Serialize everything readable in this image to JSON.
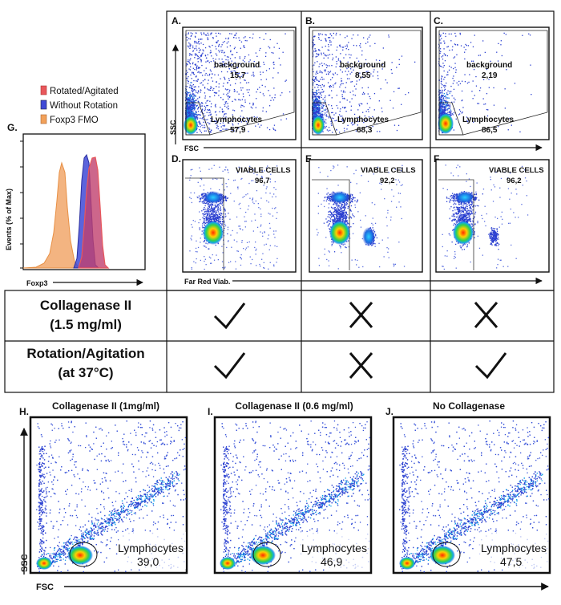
{
  "top_panels": [
    {
      "letter": "A.",
      "gate_top_label": "background",
      "gate_top_value": "15,7",
      "gate_bottom_label": "Lymphocytes",
      "gate_bottom_value": "57,9"
    },
    {
      "letter": "B.",
      "gate_top_label": "background",
      "gate_top_value": "8,55",
      "gate_bottom_label": "Lymphocytes",
      "gate_bottom_value": "68,3"
    },
    {
      "letter": "C.",
      "gate_top_label": "background",
      "gate_top_value": "2,19",
      "gate_bottom_label": "Lymphocytes",
      "gate_bottom_value": "86,5"
    }
  ],
  "viability_panels": [
    {
      "letter": "D.",
      "gate_label": "VIABLE CELLS",
      "gate_value": "96,7"
    },
    {
      "letter": "E.",
      "gate_label": "VIABLE CELLS",
      "gate_value": "92,2"
    },
    {
      "letter": "F.",
      "gate_label": "VIABLE CELLS",
      "gate_value": "96,2"
    }
  ],
  "axis_labels": {
    "ssc": "SSC",
    "fsc": "FSC",
    "far_red": "Far Red Viab.",
    "foxp3": "Foxp3",
    "events": "Events (% of Max)"
  },
  "histogram": {
    "letter": "G.",
    "legend": [
      {
        "label": "Rotated/Agitated",
        "color": "#e8575b"
      },
      {
        "label": "Without Rotation",
        "color": "#3f49d6"
      },
      {
        "label": "Foxp3 FMO",
        "color": "#f2a15a"
      }
    ]
  },
  "condition_table": {
    "rows": [
      {
        "line1": "Collagenase II",
        "line2": "(1.5 mg/ml)",
        "marks": [
          "check",
          "cross",
          "cross"
        ]
      },
      {
        "line1": "Rotation/Agitation",
        "line2": "(at 37°C)",
        "marks": [
          "check",
          "cross",
          "check"
        ]
      }
    ]
  },
  "bottom_panels": [
    {
      "letter": "H.",
      "title": "Collagenase II (1mg/ml)",
      "gate_label": "Lymphocytes",
      "gate_value": "39,0"
    },
    {
      "letter": "I.",
      "title": "Collagenase II (0.6 mg/ml)",
      "gate_label": "Lymphocytes",
      "gate_value": "46,9"
    },
    {
      "letter": "J.",
      "title": "No Collagenase",
      "gate_label": "Lymphocytes",
      "gate_value": "47,5"
    }
  ],
  "chart_data": [
    {
      "type": "scatter",
      "title": "",
      "xlabel": "FSC",
      "ylabel": "SSC",
      "gates": [
        {
          "name": "background",
          "percent": 15.7
        },
        {
          "name": "Lymphocytes",
          "percent": 57.9
        }
      ]
    },
    {
      "type": "scatter",
      "title": "",
      "xlabel": "FSC",
      "ylabel": "SSC",
      "gates": [
        {
          "name": "background",
          "percent": 8.55
        },
        {
          "name": "Lymphocytes",
          "percent": 68.3
        }
      ]
    },
    {
      "type": "scatter",
      "title": "",
      "xlabel": "FSC",
      "ylabel": "SSC",
      "gates": [
        {
          "name": "background",
          "percent": 2.19
        },
        {
          "name": "Lymphocytes",
          "percent": 86.5
        }
      ]
    },
    {
      "type": "scatter",
      "title": "",
      "xlabel": "Far Red Viab.",
      "ylabel": "",
      "gates": [
        {
          "name": "VIABLE CELLS",
          "percent": 96.7
        }
      ]
    },
    {
      "type": "scatter",
      "title": "",
      "xlabel": "Far Red Viab.",
      "ylabel": "",
      "gates": [
        {
          "name": "VIABLE CELLS",
          "percent": 92.2
        }
      ]
    },
    {
      "type": "scatter",
      "title": "",
      "xlabel": "Far Red Viab.",
      "ylabel": "",
      "gates": [
        {
          "name": "VIABLE CELLS",
          "percent": 96.2
        }
      ]
    },
    {
      "type": "area",
      "title": "",
      "xlabel": "Foxp3",
      "ylabel": "Events (% of Max)",
      "series": [
        {
          "name": "Rotated/Agitated",
          "color": "#e8575b"
        },
        {
          "name": "Without Rotation",
          "color": "#3f49d6"
        },
        {
          "name": "Foxp3 FMO",
          "color": "#f2a15a"
        }
      ]
    },
    {
      "type": "scatter",
      "title": "Collagenase II (1mg/ml)",
      "xlabel": "FSC",
      "ylabel": "SSC",
      "gates": [
        {
          "name": "Lymphocytes",
          "percent": 39.0
        }
      ]
    },
    {
      "type": "scatter",
      "title": "Collagenase II (0.6 mg/ml)",
      "xlabel": "FSC",
      "ylabel": "SSC",
      "gates": [
        {
          "name": "Lymphocytes",
          "percent": 46.9
        }
      ]
    },
    {
      "type": "scatter",
      "title": "No Collagenase",
      "xlabel": "FSC",
      "ylabel": "SSC",
      "gates": [
        {
          "name": "Lymphocytes",
          "percent": 47.5
        }
      ]
    }
  ]
}
